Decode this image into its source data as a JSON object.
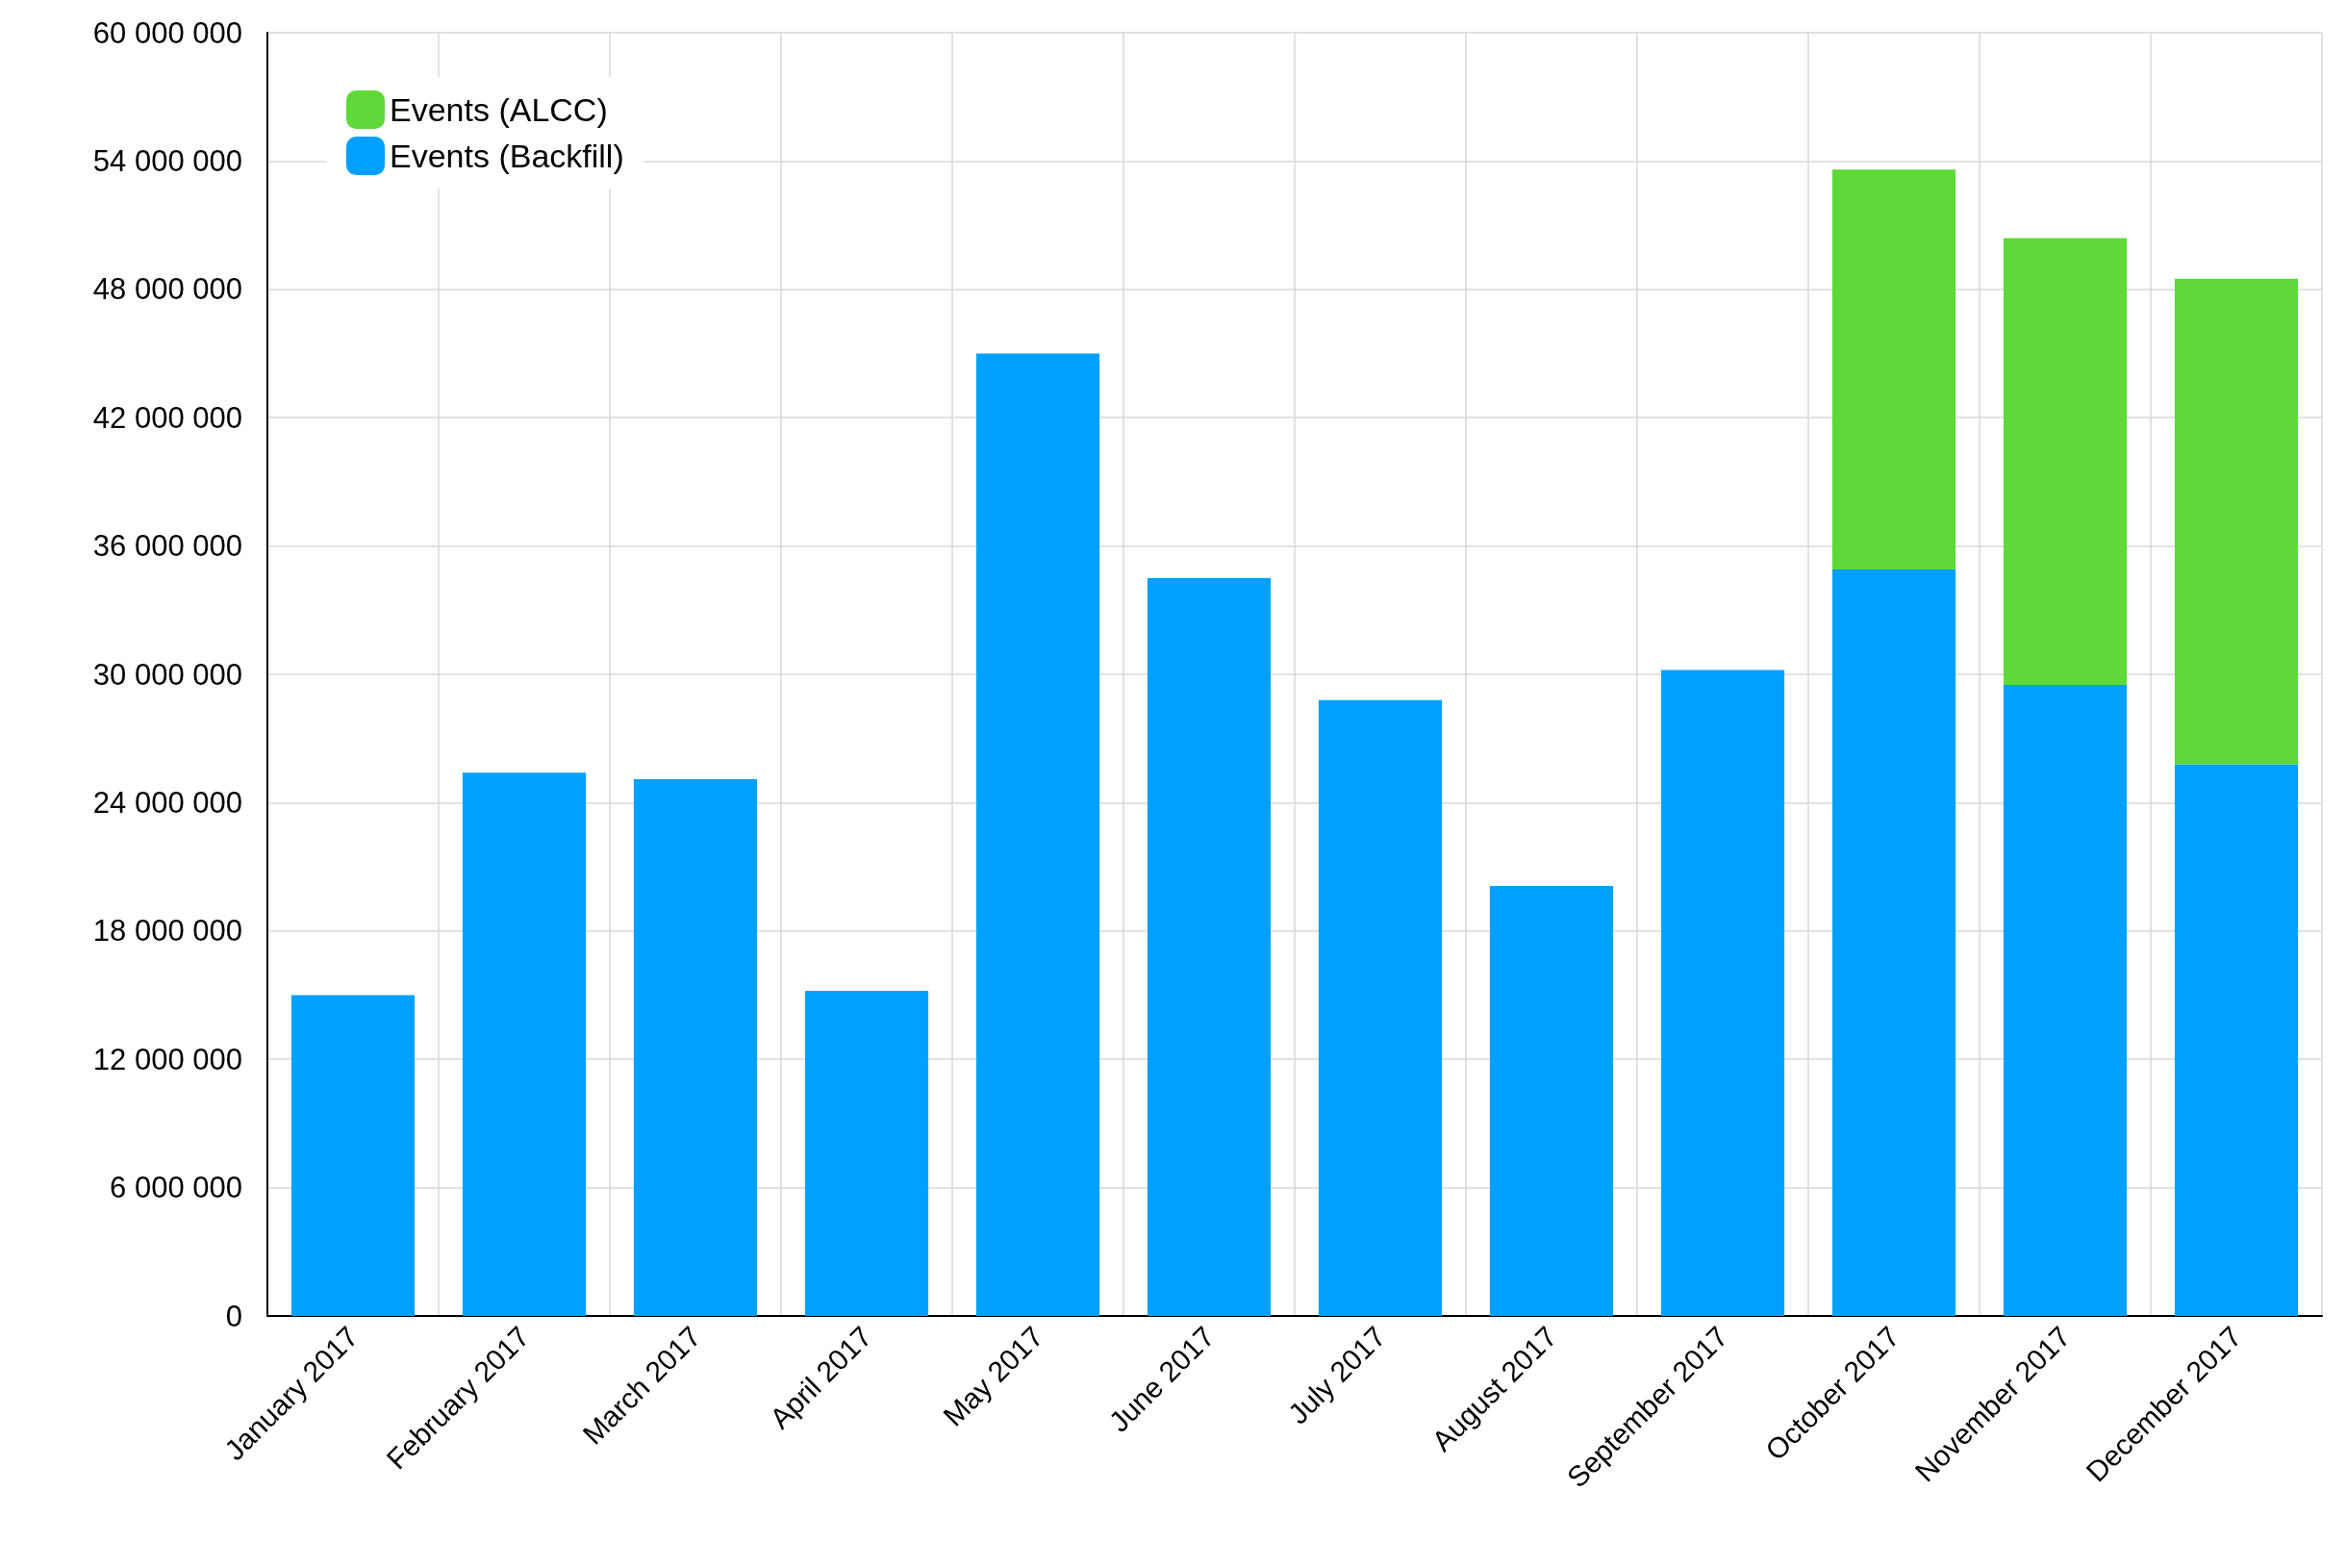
{
  "chart_data": {
    "type": "bar",
    "stacked": true,
    "categories": [
      "January 2017",
      "February 2017",
      "March 2017",
      "April 2017",
      "May 2017",
      "June 2017",
      "July 2017",
      "August 2017",
      "September 2017",
      "October 2017",
      "November 2017",
      "December 2017"
    ],
    "series": [
      {
        "name": "Events (Backfill)",
        "color": "#00a0ff",
        "values": [
          15000000,
          25400000,
          25100000,
          15200000,
          45000000,
          34500000,
          28800000,
          20100000,
          30200000,
          34900000,
          29500000,
          25800000
        ]
      },
      {
        "name": "Events (ALCC)",
        "color": "#5fd83a",
        "values": [
          null,
          null,
          null,
          null,
          null,
          null,
          null,
          null,
          null,
          18700000,
          20900000,
          22700000
        ]
      }
    ],
    "ylim": [
      0,
      60000000
    ],
    "yticks": [
      0,
      {
        "value": 6000000,
        "label": "6 000 000"
      },
      {
        "value": 12000000,
        "label": "12 000 000"
      },
      {
        "value": 18000000,
        "label": "18 000 000"
      },
      {
        "value": 24000000,
        "label": "24 000 000"
      },
      {
        "value": 30000000,
        "label": "30 000 000"
      },
      {
        "value": 36000000,
        "label": "36 000 000"
      },
      {
        "value": 42000000,
        "label": "42 000 000"
      },
      {
        "value": 48000000,
        "label": "48 000 000"
      },
      {
        "value": 54000000,
        "label": "54 000 000"
      },
      {
        "value": 60000000,
        "label": "60 000 000"
      }
    ],
    "grid": true,
    "legend": "top left"
  }
}
